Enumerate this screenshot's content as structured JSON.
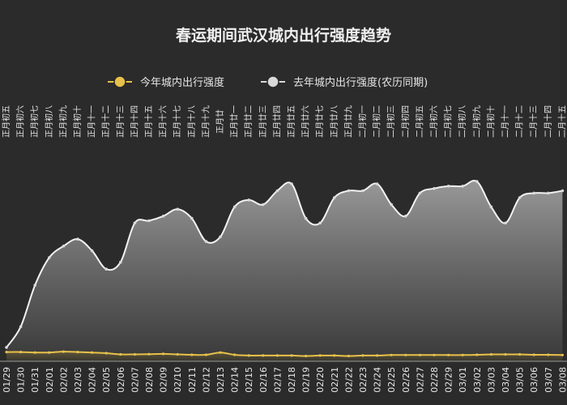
{
  "chart_data": {
    "type": "area",
    "title": "春运期间武汉城内出行强度趋势",
    "legend": {
      "placement": "top-center",
      "entries": [
        {
          "name": "今年城内出行强度",
          "color": "#e7c14a",
          "marker": "circle"
        },
        {
          "name": "去年城内出行强度(农历同期)",
          "color": "#d9d9d9",
          "marker": "circle"
        }
      ]
    },
    "top_axis_labels": [
      "正月初五",
      "正月初六",
      "正月初七",
      "正月初八",
      "正月初九",
      "正月初十",
      "正月十一",
      "正月十二",
      "正月十三",
      "正月十四",
      "正月十五",
      "正月十六",
      "正月十七",
      "正月十八",
      "正月十九",
      "正月廿",
      "正月廿一",
      "正月廿二",
      "正月廿三",
      "正月廿四",
      "正月廿五",
      "正月廿六",
      "正月廿七",
      "正月廿八",
      "正月廿九",
      "二月初一",
      "二月初二",
      "二月初三",
      "二月初四",
      "二月初五",
      "二月初六",
      "二月初七",
      "二月初八",
      "二月初九",
      "二月初十",
      "二月十一",
      "二月十二",
      "二月十三",
      "二月十四",
      "二月十五"
    ],
    "categories": [
      "01/29",
      "01/30",
      "01/31",
      "02/01",
      "02/02",
      "02/03",
      "02/04",
      "02/05",
      "02/06",
      "02/07",
      "02/08",
      "02/09",
      "02/10",
      "02/11",
      "02/12",
      "02/13",
      "02/14",
      "02/15",
      "02/16",
      "02/17",
      "02/18",
      "02/19",
      "02/20",
      "02/21",
      "02/22",
      "02/23",
      "02/24",
      "02/25",
      "02/26",
      "02/27",
      "02/28",
      "02/29",
      "03/01",
      "03/02",
      "03/03",
      "03/04",
      "03/05",
      "03/06",
      "03/07",
      "03/08"
    ],
    "series": [
      {
        "name": "去年城内出行强度(农历同期)",
        "values": [
          0.6,
          1.5,
          3.3,
          4.5,
          5.0,
          5.3,
          4.8,
          4.0,
          4.3,
          6.0,
          6.1,
          6.3,
          6.6,
          6.2,
          5.2,
          5.4,
          6.7,
          7.0,
          6.8,
          7.4,
          7.7,
          6.2,
          6.0,
          7.1,
          7.4,
          7.4,
          7.7,
          6.8,
          6.3,
          7.3,
          7.5,
          7.6,
          7.6,
          7.8,
          6.7,
          6.0,
          7.1,
          7.3,
          7.3,
          7.4
        ],
        "color": "#d9d9d9"
      },
      {
        "name": "今年城内出行强度",
        "values": [
          0.4,
          0.4,
          0.38,
          0.38,
          0.42,
          0.4,
          0.38,
          0.35,
          0.3,
          0.3,
          0.31,
          0.32,
          0.3,
          0.28,
          0.28,
          0.38,
          0.28,
          0.25,
          0.25,
          0.25,
          0.25,
          0.23,
          0.25,
          0.25,
          0.23,
          0.25,
          0.25,
          0.27,
          0.27,
          0.27,
          0.27,
          0.27,
          0.27,
          0.28,
          0.3,
          0.3,
          0.3,
          0.28,
          0.28,
          0.27
        ],
        "color": "#e7c14a"
      }
    ],
    "ylim": [
      0,
      9
    ],
    "xlabel": "",
    "ylabel": "",
    "grid": false
  }
}
